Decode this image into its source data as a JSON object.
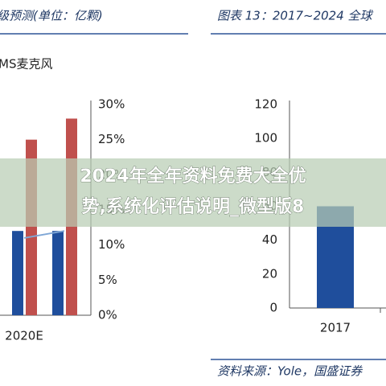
{
  "chart_data": [
    {
      "type": "bar",
      "title": "级预测(单位：亿颗)",
      "subtitle": "MS麦克风",
      "categories": [
        "2020E",
        null
      ],
      "series": [
        {
          "color": "#1f4e9c",
          "values": [
            12,
            12
          ]
        },
        {
          "color": "#c0504d",
          "values": [
            25,
            28
          ]
        },
        {
          "color": "#7fa7d6",
          "mark": "line",
          "values": [
            11,
            12
          ]
        }
      ],
      "ylim": [
        0,
        30
      ],
      "yticks": [
        {
          "value": 0,
          "label": "0%"
        },
        {
          "value": 5,
          "label": "5%"
        },
        {
          "value": 10,
          "label": "10%"
        },
        {
          "value": 15,
          "label": "15%"
        },
        {
          "value": 20,
          "label": "20%"
        },
        {
          "value": 25,
          "label": "25%"
        },
        {
          "value": 30,
          "label": "30%"
        }
      ]
    },
    {
      "type": "bar",
      "title": "图表 13：2017~2024 全球",
      "categories": [
        "2017"
      ],
      "series": [
        {
          "color": "#1f4e9c",
          "values": [
            60
          ]
        }
      ],
      "ylim": [
        0,
        120
      ],
      "yticks": [
        0,
        20,
        40,
        60,
        80,
        100,
        120
      ],
      "source": "资料来源：Yole，国盛证券"
    }
  ],
  "banner": {
    "lines": [
      "2024年全年资料免费大全优",
      "势,系统化评估说明_微型版8"
    ]
  }
}
